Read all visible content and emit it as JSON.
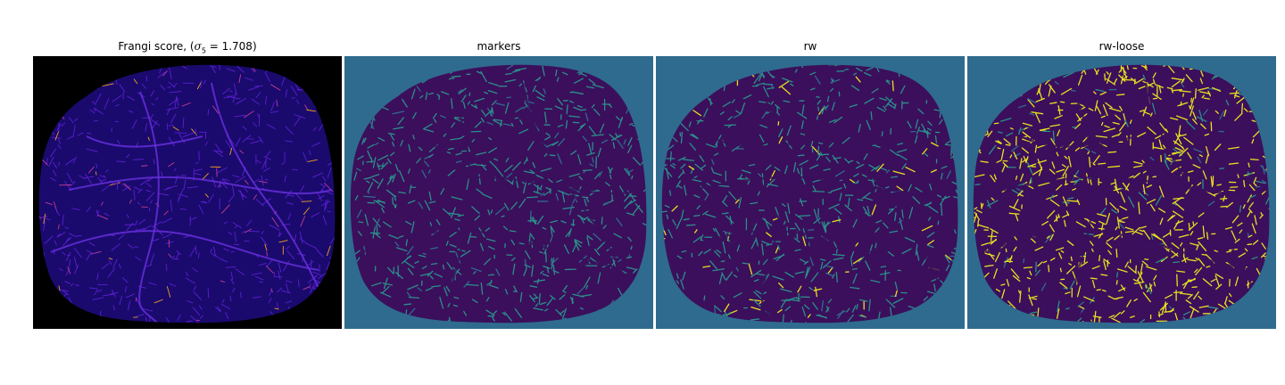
{
  "panels": [
    {
      "title_pre": "Frangi score, (",
      "title_sigma": "σ",
      "title_sub": "5",
      "title_post": " = 1.708)",
      "background": "#000000",
      "tissue": "#1a0a6e",
      "vessels": [
        "#5b1fd1",
        "#c33d8f",
        "#f0a020"
      ]
    },
    {
      "title": "markers",
      "background": "#2f6b8e",
      "tissue": "#3b0f5c",
      "vessels": [
        "#2b8f8a",
        "#2f6b8e"
      ]
    },
    {
      "title": "rw",
      "background": "#2f6b8e",
      "tissue": "#3b0f5c",
      "vessels": [
        "#2b8f8a",
        "#e8e020",
        "#2f6b8e"
      ]
    },
    {
      "title": "rw-loose",
      "background": "#2f6b8e",
      "tissue": "#3b0f5c",
      "vessels": [
        "#e8e020",
        "#2b8f8a",
        "#2f6b8e"
      ]
    }
  ]
}
